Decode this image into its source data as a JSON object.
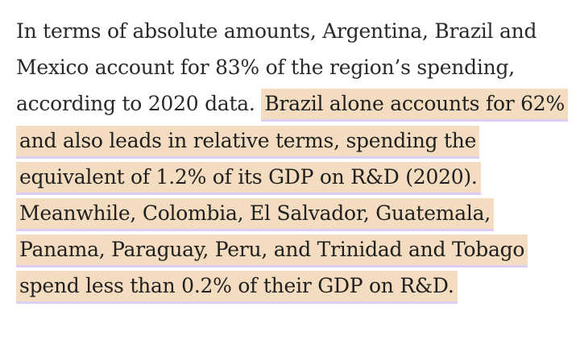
{
  "article": {
    "plain_text": "In terms of absolute amounts, Argentina, Brazil and Mexico account for 83% of the region’s spending, according to 2020 data. ",
    "highlighted_text": "Brazil alone accounts for 62% and also leads in relative terms, spending the equivalent of 1.2% of its GDP on R&D (2020). Meanwhile, Colombia, El Salvador, Guatemala, Panama, Paraguay, Peru, and Trinidad and Tobago spend less than 0.2% of their GDP on R&D."
  },
  "colors": {
    "highlight_fill": "#f4dcc0",
    "highlight_underline": "#dccdf3",
    "text": "#2a2a2a"
  }
}
